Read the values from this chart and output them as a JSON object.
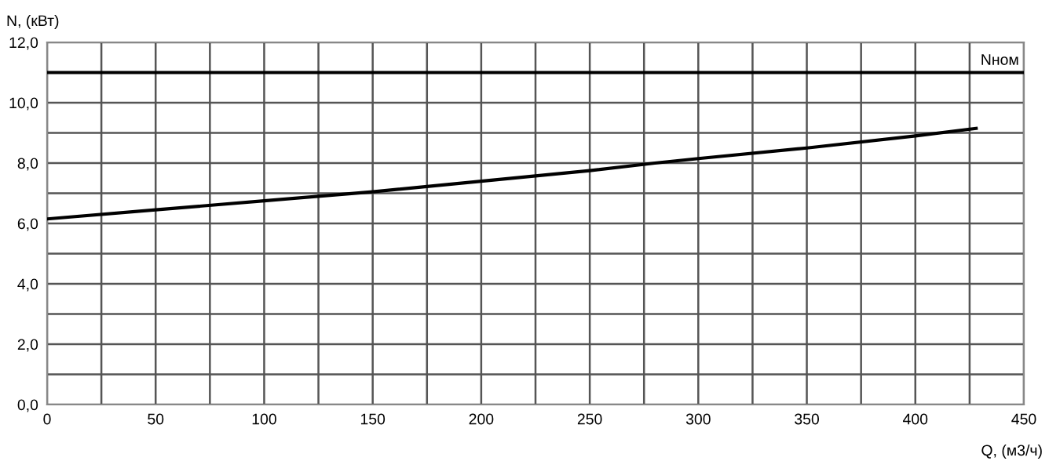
{
  "chart_data": {
    "type": "line",
    "xlabel": "Q, (м3/ч)",
    "ylabel": "N, (кВт)",
    "x": [
      0,
      50,
      100,
      150,
      200,
      250,
      280,
      300,
      350,
      400,
      428
    ],
    "series": [
      {
        "color": "#000000",
        "values": [
          6.15,
          6.45,
          6.75,
          7.05,
          7.4,
          7.75,
          8.0,
          8.15,
          8.5,
          8.9,
          9.15
        ]
      }
    ],
    "xlim": [
      0,
      450
    ],
    "ylim": [
      0,
      12
    ],
    "xticks": [
      0,
      {
        "value": 25,
        "label": null
      },
      50,
      {
        "value": 75,
        "label": null
      },
      100,
      {
        "value": 125,
        "label": null
      },
      150,
      {
        "value": 175,
        "label": null
      },
      200,
      {
        "value": 225,
        "label": null
      },
      250,
      {
        "value": 275,
        "label": null
      },
      300,
      {
        "value": 325,
        "label": null
      },
      350,
      {
        "value": 375,
        "label": null
      },
      400,
      {
        "value": 425,
        "label": null
      },
      450
    ],
    "yticks": [
      {
        "value": 0,
        "label": "0,0"
      },
      {
        "value": 1,
        "label": null
      },
      {
        "value": 2,
        "label": "2,0"
      },
      {
        "value": 3,
        "label": null
      },
      {
        "value": 4,
        "label": "4,0"
      },
      {
        "value": 5,
        "label": null
      },
      {
        "value": 6,
        "label": "6,0"
      },
      {
        "value": 7,
        "label": null
      },
      {
        "value": 8,
        "label": "8,0"
      },
      {
        "value": 9,
        "label": null
      },
      {
        "value": 10,
        "label": "10,0"
      },
      {
        "value": 11,
        "label": null
      },
      {
        "value": 12,
        "label": "12,0"
      }
    ],
    "ref_lines": [
      {
        "axis": "y",
        "value": 11,
        "label": "Nном",
        "color": "#000000"
      }
    ],
    "grid": true,
    "marker": "none",
    "line_style": "solid"
  }
}
